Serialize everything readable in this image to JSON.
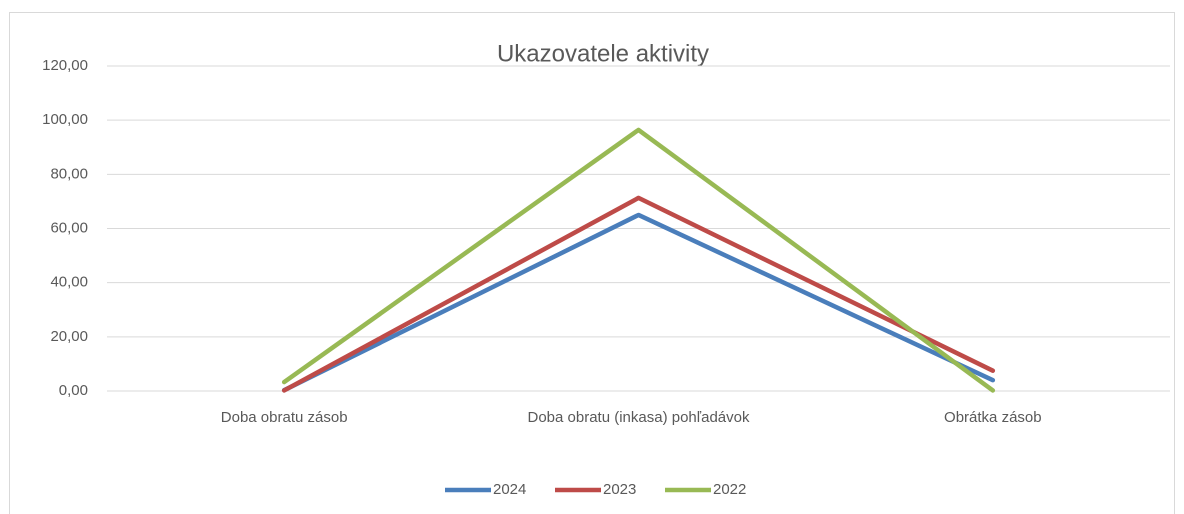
{
  "chart_data": {
    "type": "line",
    "title": "Ukazovatele aktivity",
    "categories": [
      "Doba obratu zásob",
      "Doba obratu (inkasa)  pohľadávok",
      "Obrátka zásob"
    ],
    "series": [
      {
        "name": "2024",
        "color": "#4a7ebb",
        "values": [
          0.3,
          65,
          4
        ]
      },
      {
        "name": "2023",
        "color": "#be4b48",
        "values": [
          0.2,
          71.3,
          7.5
        ]
      },
      {
        "name": "2022",
        "color": "#98b954",
        "values": [
          3.3,
          96.4,
          0.2
        ]
      }
    ],
    "ylim": [
      0,
      120
    ],
    "yticks": [
      {
        "value": 0,
        "label": "0,00"
      },
      {
        "value": 20,
        "label": "20,00"
      },
      {
        "value": 40,
        "label": "40,00"
      },
      {
        "value": 60,
        "label": "60,00"
      },
      {
        "value": 80,
        "label": "80,00"
      },
      {
        "value": 100,
        "label": "100,00"
      },
      {
        "value": 120,
        "label": "120,00"
      }
    ],
    "grid": true,
    "legend": "bottom"
  }
}
